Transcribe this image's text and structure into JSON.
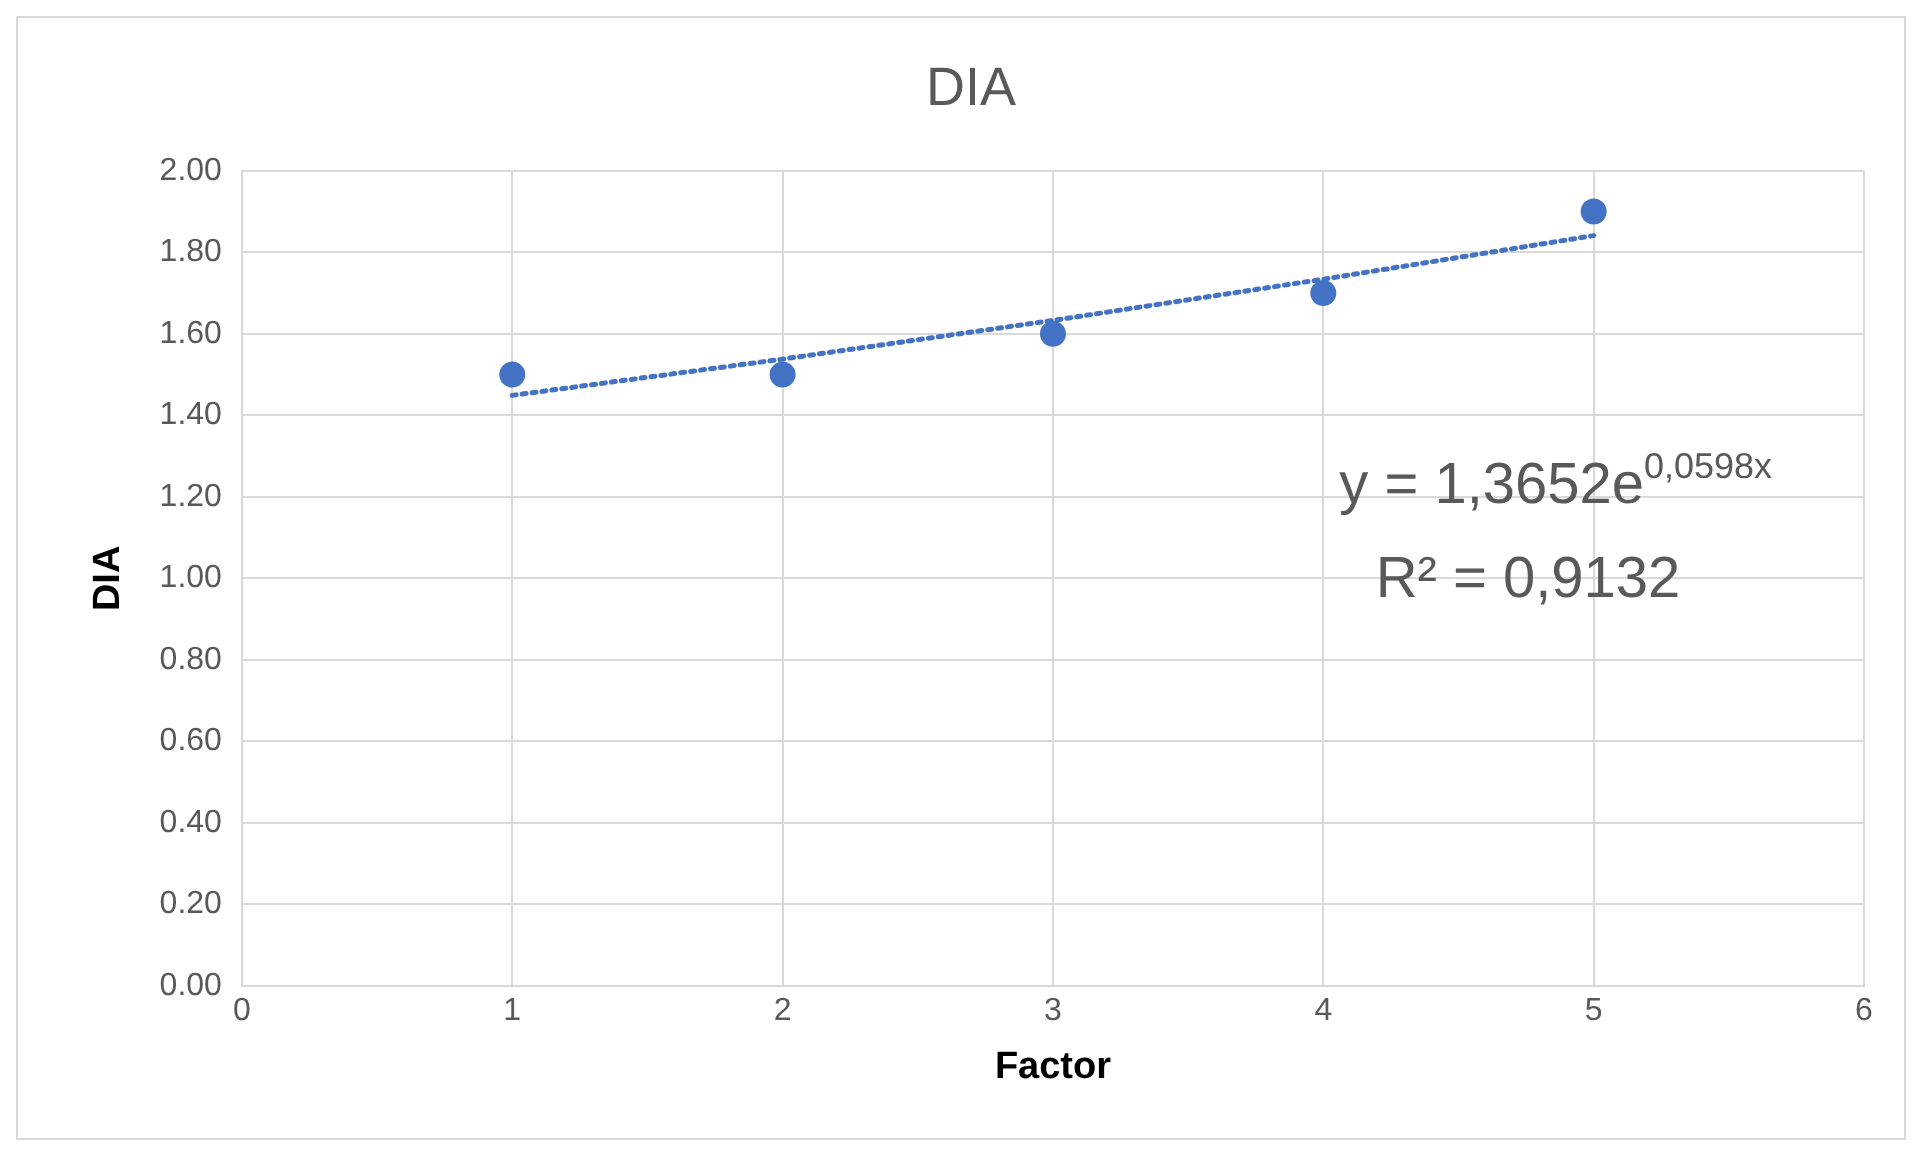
{
  "chart_data": {
    "type": "scatter",
    "title": "DIA",
    "xlabel": "Factor",
    "ylabel": "DIA",
    "xlim": [
      0,
      6
    ],
    "xticks": [
      0,
      1,
      2,
      3,
      4,
      5,
      6
    ],
    "ylim": [
      0,
      2
    ],
    "yticks": [
      {
        "value": 0,
        "label": "0.00"
      },
      {
        "value": 0.2,
        "label": "0.20"
      },
      {
        "value": 0.4,
        "label": "0.40"
      },
      {
        "value": 0.6,
        "label": "0.60"
      },
      {
        "value": 0.8,
        "label": "0.80"
      },
      {
        "value": 1,
        "label": "1.00"
      },
      {
        "value": 1.2,
        "label": "1.20"
      },
      {
        "value": 1.4,
        "label": "1.40"
      },
      {
        "value": 1.6,
        "label": "1.60"
      },
      {
        "value": 1.8,
        "label": "1.80"
      },
      {
        "value": 2,
        "label": "2.00"
      }
    ],
    "grid": true,
    "legend": false,
    "series": [
      {
        "type": "scatter",
        "color": "#4472c4",
        "marker": "circle",
        "x": [
          1,
          2,
          3,
          4,
          5
        ],
        "values": [
          1.5,
          1.5,
          1.6,
          1.7,
          1.9
        ]
      },
      {
        "type": "line",
        "color": "#4472c4",
        "marker": "none",
        "line_style": "dotted",
        "x": [
          1,
          2,
          3,
          4,
          5
        ],
        "values": [
          1.449,
          1.538,
          1.633,
          1.734,
          1.841
        ]
      }
    ],
    "annotations": [
      "y = 1,3652e$^{0,0598x}$",
      "R² = 0,9132"
    ]
  }
}
